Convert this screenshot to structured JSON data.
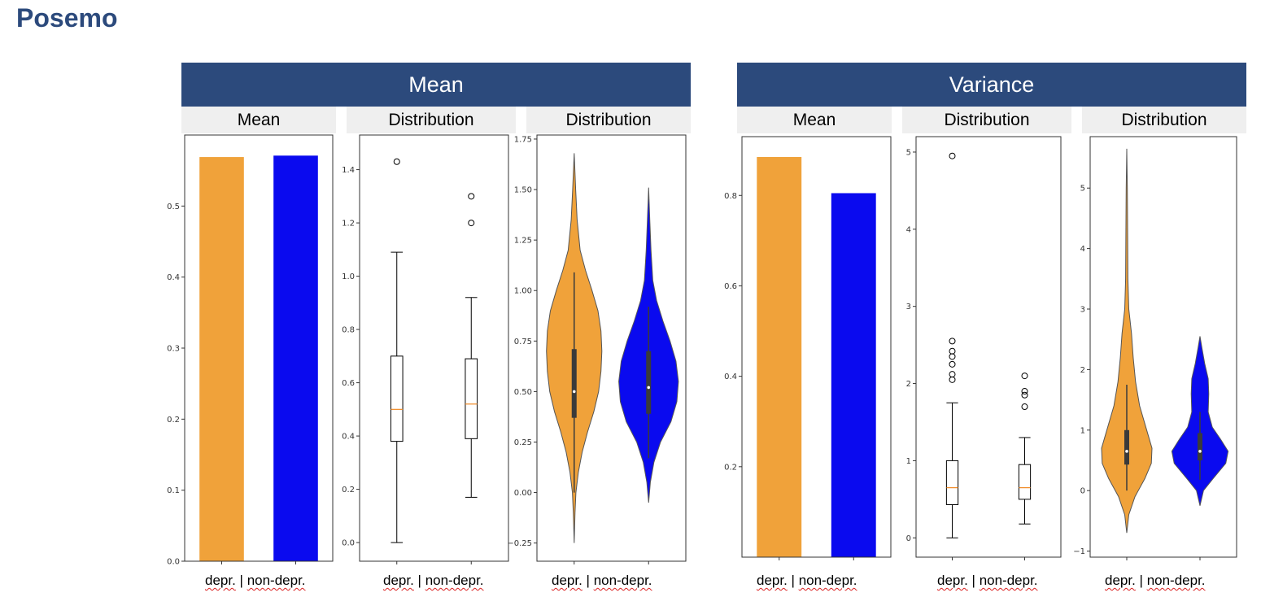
{
  "page_title": "Posemo",
  "groups": [
    {
      "title": "Mean"
    },
    {
      "title": "Variance"
    }
  ],
  "subheaders": [
    "Mean",
    "Distribution",
    "Distribution",
    "Mean",
    "Distribution",
    "Distribution"
  ],
  "x_captions": [
    {
      "a": "depr.",
      "sep": " | ",
      "b": "non-depr."
    },
    {
      "a": "depr.",
      "sep": " | ",
      "b": "non-depr."
    },
    {
      "a": "depr.",
      "sep": " | ",
      "b": "non-depr."
    },
    {
      "a": "depr.",
      "sep": " | ",
      "b": "non-depr."
    },
    {
      "a": "depr.",
      "sep": " | ",
      "b": "non-depr."
    },
    {
      "a": "depr.",
      "sep": " | ",
      "b": "non-depr."
    }
  ],
  "colors": {
    "header": "#2c4a7c",
    "depr": "#f0a23a",
    "nondepr": "#0a0aef",
    "median": "#f08a24"
  },
  "chart_data": [
    {
      "type": "bar",
      "title": "Mean",
      "categories": [
        "depr.",
        "non-depr."
      ],
      "values": [
        0.569,
        0.571
      ],
      "ylim": [
        0,
        0.6
      ],
      "yticks": [
        0.0,
        0.1,
        0.2,
        0.3,
        0.4,
        0.5
      ],
      "ytick_labels": [
        "0.0",
        "0.1",
        "0.2",
        "0.3",
        "0.4",
        "0.5"
      ]
    },
    {
      "type": "box",
      "title": "Distribution",
      "categories": [
        "depr.",
        "non-depr."
      ],
      "series": [
        {
          "name": "depr.",
          "whisker_low": 0.0,
          "q1": 0.38,
          "median": 0.5,
          "q3": 0.7,
          "whisker_high": 1.09,
          "outliers": [
            1.43
          ]
        },
        {
          "name": "non-depr.",
          "whisker_low": 0.17,
          "q1": 0.39,
          "median": 0.52,
          "q3": 0.69,
          "whisker_high": 0.92,
          "outliers": [
            1.2,
            1.3
          ]
        }
      ],
      "ylim": [
        -0.07,
        1.53
      ],
      "yticks": [
        0.0,
        0.2,
        0.4,
        0.6,
        0.8,
        1.0,
        1.2,
        1.4
      ],
      "ytick_labels": [
        "0.0",
        "0.2",
        "0.4",
        "0.6",
        "0.8",
        "1.0",
        "1.2",
        "1.4"
      ]
    },
    {
      "type": "violin",
      "title": "Distribution",
      "categories": [
        "depr.",
        "non-depr."
      ],
      "series": [
        {
          "name": "depr.",
          "min": -0.25,
          "max": 1.68,
          "q1": 0.37,
          "median": 0.5,
          "q3": 0.71,
          "whisker_low": 0.0,
          "whisker_high": 1.09,
          "profile": [
            [
              -0.25,
              0.0
            ],
            [
              -0.1,
              0.03
            ],
            [
              0.0,
              0.06
            ],
            [
              0.1,
              0.14
            ],
            [
              0.2,
              0.27
            ],
            [
              0.3,
              0.45
            ],
            [
              0.4,
              0.66
            ],
            [
              0.5,
              0.82
            ],
            [
              0.6,
              0.9
            ],
            [
              0.7,
              0.93
            ],
            [
              0.8,
              0.9
            ],
            [
              0.9,
              0.8
            ],
            [
              1.0,
              0.6
            ],
            [
              1.1,
              0.38
            ],
            [
              1.2,
              0.2
            ],
            [
              1.35,
              0.1
            ],
            [
              1.5,
              0.05
            ],
            [
              1.68,
              0.0
            ]
          ]
        },
        {
          "name": "non-depr.",
          "min": -0.05,
          "max": 1.51,
          "q1": 0.39,
          "median": 0.52,
          "q3": 0.7,
          "whisker_low": 0.17,
          "whisker_high": 0.92,
          "profile": [
            [
              -0.05,
              0.0
            ],
            [
              0.05,
              0.06
            ],
            [
              0.15,
              0.18
            ],
            [
              0.25,
              0.4
            ],
            [
              0.35,
              0.75
            ],
            [
              0.45,
              0.95
            ],
            [
              0.55,
              1.0
            ],
            [
              0.65,
              0.92
            ],
            [
              0.75,
              0.72
            ],
            [
              0.85,
              0.48
            ],
            [
              0.95,
              0.27
            ],
            [
              1.05,
              0.14
            ],
            [
              1.2,
              0.08
            ],
            [
              1.35,
              0.04
            ],
            [
              1.51,
              0.0
            ]
          ]
        }
      ],
      "ylim": [
        -0.34,
        1.77
      ],
      "yticks": [
        -0.25,
        0.0,
        0.25,
        0.5,
        0.75,
        1.0,
        1.25,
        1.5,
        1.75
      ],
      "ytick_labels": [
        "−0.25",
        "0.00",
        "0.25",
        "0.50",
        "0.75",
        "1.00",
        "1.25",
        "1.50",
        "1.75"
      ]
    },
    {
      "type": "bar",
      "title": "Mean",
      "categories": [
        "depr.",
        "non-depr."
      ],
      "values": [
        0.885,
        0.805
      ],
      "ylim": [
        0,
        0.93
      ],
      "yticks": [
        0.2,
        0.4,
        0.6,
        0.8
      ],
      "ytick_labels": [
        "0.2",
        "0.4",
        "0.6",
        "0.8"
      ]
    },
    {
      "type": "box",
      "title": "Distribution",
      "categories": [
        "depr.",
        "non-depr."
      ],
      "series": [
        {
          "name": "depr.",
          "whisker_low": 0.0,
          "q1": 0.43,
          "median": 0.65,
          "q3": 1.0,
          "whisker_high": 1.75,
          "outliers": [
            2.05,
            2.12,
            2.25,
            2.35,
            2.42,
            2.55,
            4.95
          ]
        },
        {
          "name": "non-depr.",
          "whisker_low": 0.18,
          "q1": 0.5,
          "median": 0.65,
          "q3": 0.95,
          "whisker_high": 1.3,
          "outliers": [
            1.7,
            1.85,
            1.9,
            2.1
          ]
        }
      ],
      "ylim": [
        -0.25,
        5.2
      ],
      "yticks": [
        0,
        1,
        2,
        3,
        4,
        5
      ],
      "ytick_labels": [
        "0",
        "1",
        "2",
        "3",
        "4",
        "5"
      ]
    },
    {
      "type": "violin",
      "title": "Distribution",
      "categories": [
        "depr.",
        "non-depr."
      ],
      "series": [
        {
          "name": "depr.",
          "min": -0.7,
          "max": 5.65,
          "q1": 0.43,
          "median": 0.65,
          "q3": 1.0,
          "whisker_low": 0.0,
          "whisker_high": 1.75,
          "profile": [
            [
              -0.7,
              0.0
            ],
            [
              -0.4,
              0.07
            ],
            [
              -0.1,
              0.28
            ],
            [
              0.2,
              0.62
            ],
            [
              0.45,
              0.84
            ],
            [
              0.7,
              0.86
            ],
            [
              1.0,
              0.68
            ],
            [
              1.4,
              0.44
            ],
            [
              1.8,
              0.3
            ],
            [
              2.2,
              0.22
            ],
            [
              2.6,
              0.16
            ],
            [
              3.0,
              0.07
            ],
            [
              3.5,
              0.04
            ],
            [
              4.2,
              0.03
            ],
            [
              5.0,
              0.02
            ],
            [
              5.65,
              0.0
            ]
          ]
        },
        {
          "name": "non-depr.",
          "min": -0.25,
          "max": 2.55,
          "q1": 0.5,
          "median": 0.65,
          "q3": 0.95,
          "whisker_low": 0.18,
          "whisker_high": 1.3,
          "profile": [
            [
              -0.25,
              0.0
            ],
            [
              0.0,
              0.12
            ],
            [
              0.2,
              0.45
            ],
            [
              0.45,
              0.88
            ],
            [
              0.65,
              0.96
            ],
            [
              0.85,
              0.7
            ],
            [
              1.05,
              0.42
            ],
            [
              1.3,
              0.28
            ],
            [
              1.6,
              0.3
            ],
            [
              1.85,
              0.28
            ],
            [
              2.1,
              0.16
            ],
            [
              2.35,
              0.07
            ],
            [
              2.55,
              0.0
            ]
          ]
        }
      ],
      "ylim": [
        -1.1,
        5.85
      ],
      "yticks": [
        -1,
        0,
        1,
        2,
        3,
        4,
        5
      ],
      "ytick_labels": [
        "−1",
        "0",
        "1",
        "2",
        "3",
        "4",
        "5"
      ]
    }
  ]
}
